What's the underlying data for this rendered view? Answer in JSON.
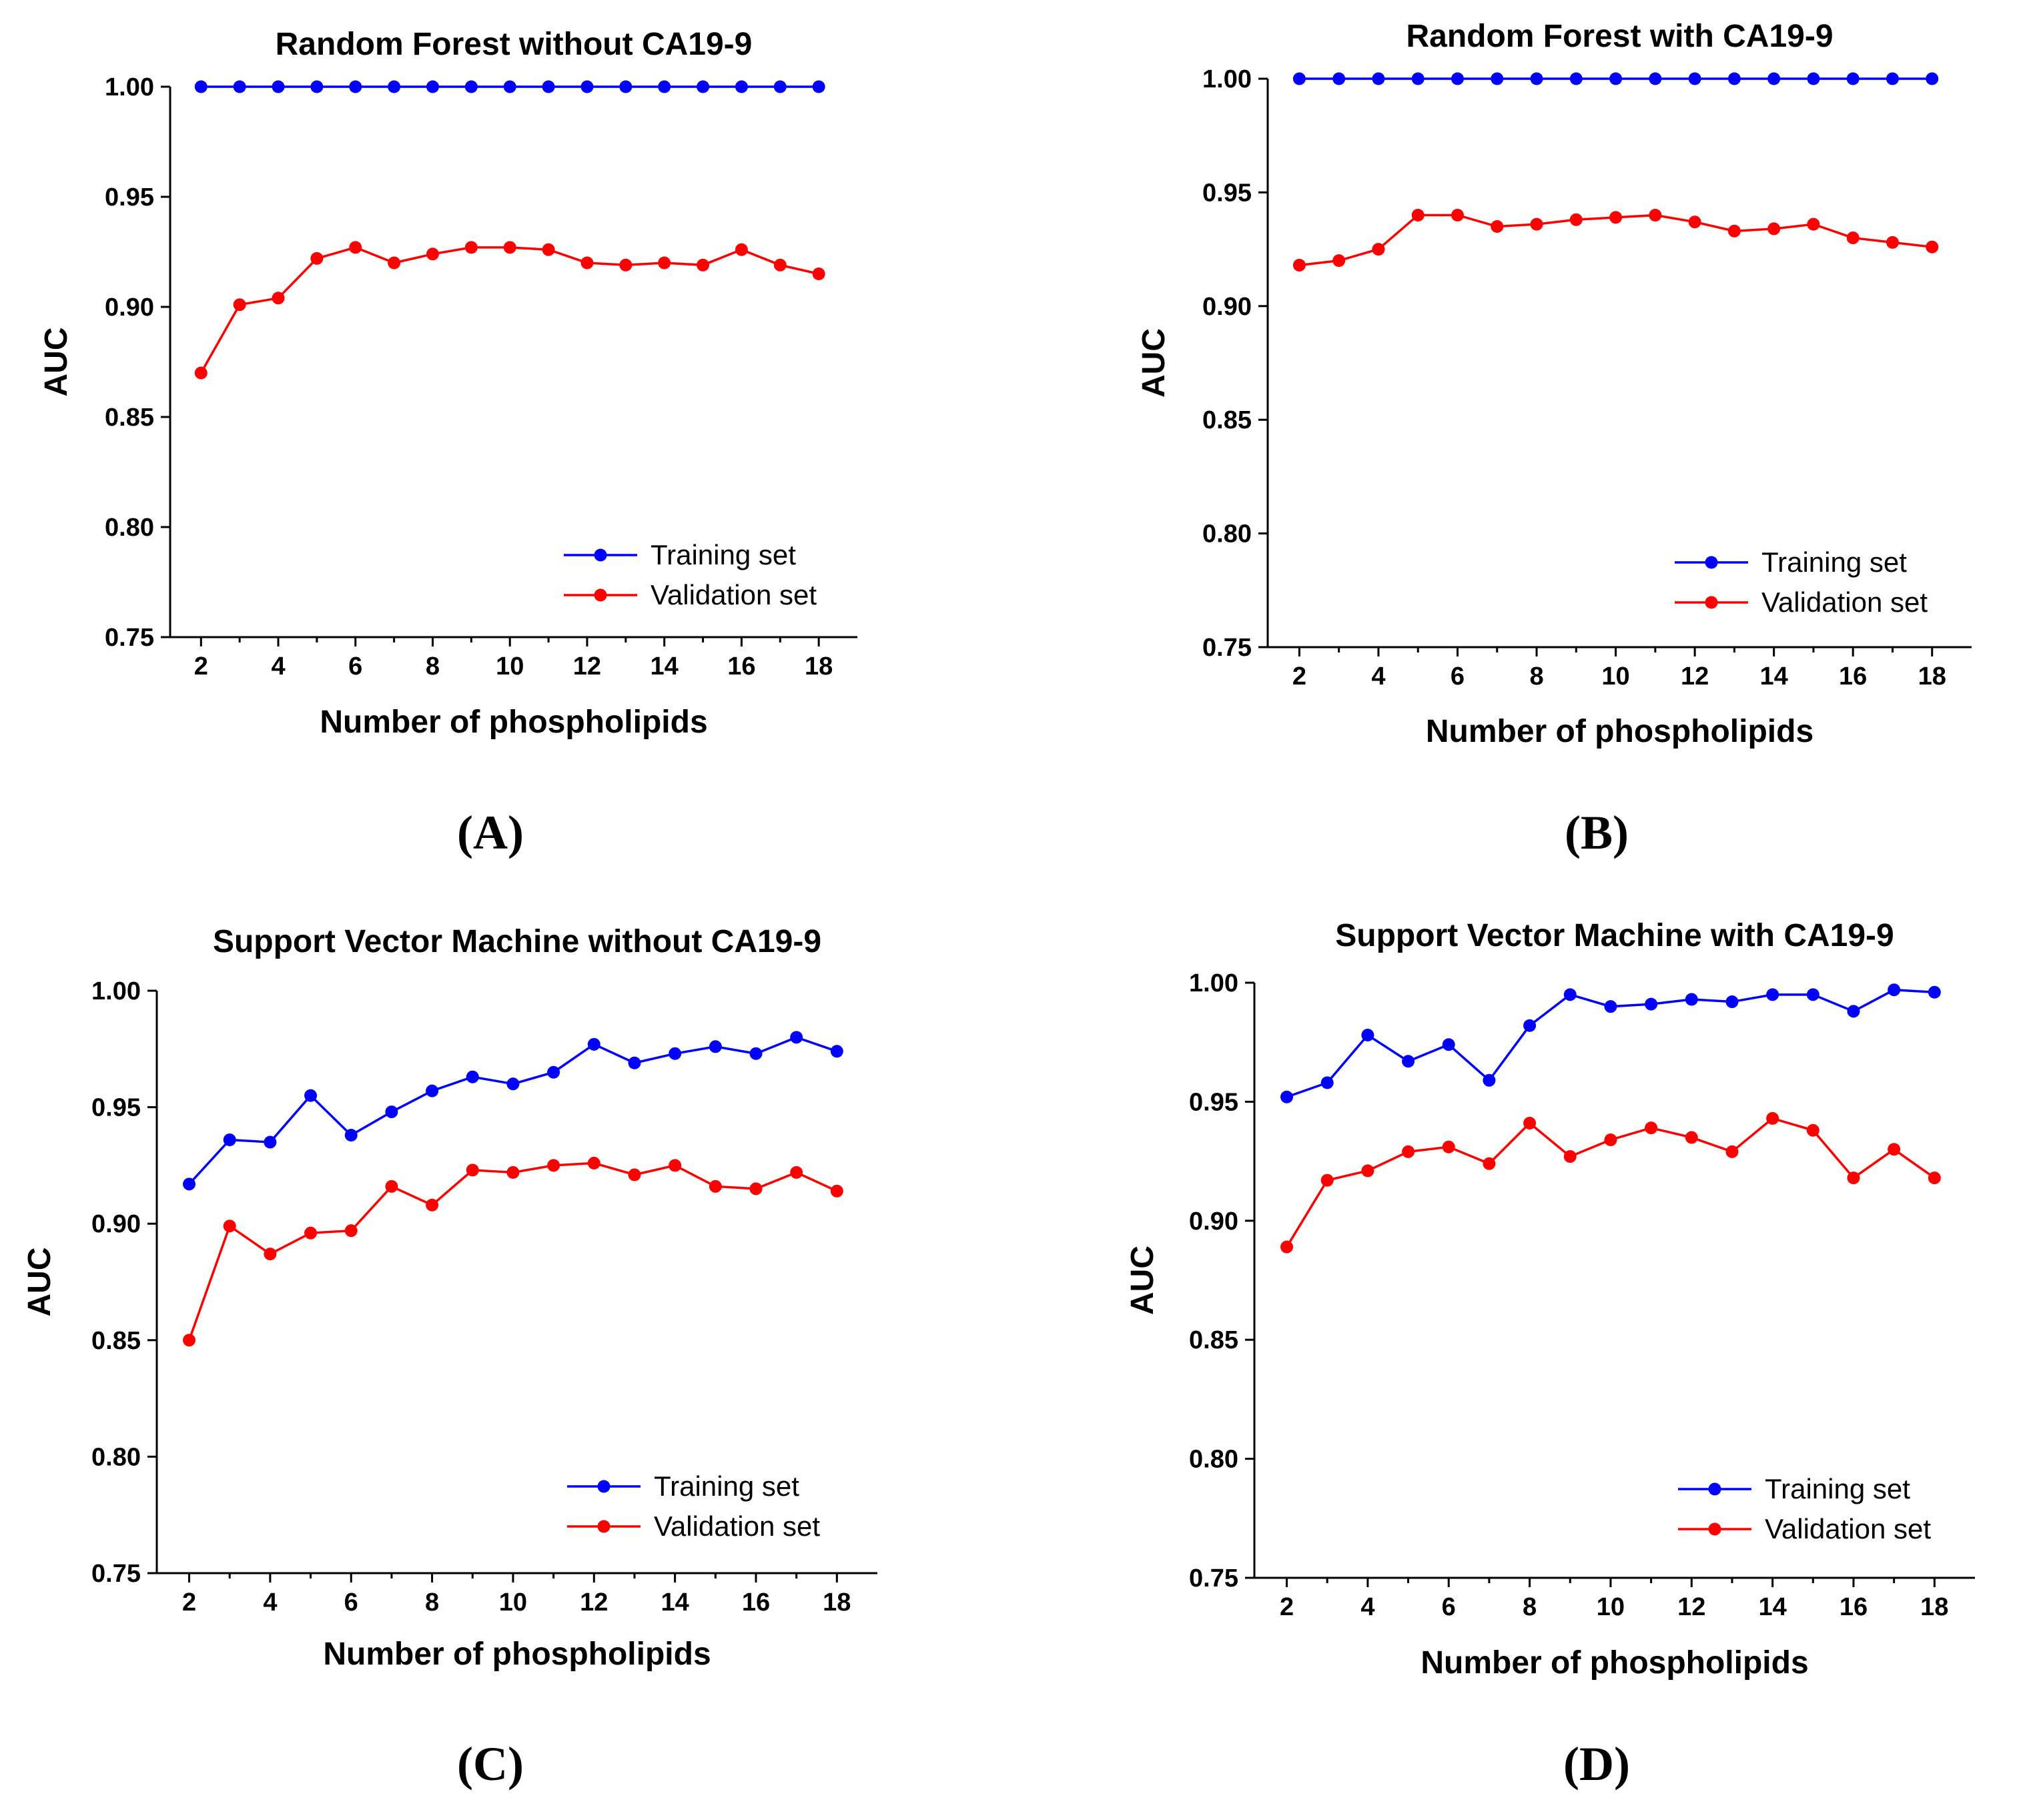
{
  "figure": {
    "panels": [
      "(A)",
      "(B)",
      "(C)",
      "(D)"
    ]
  },
  "colors": {
    "training": "#0000ff",
    "validation": "#ff0000",
    "axis": "#000000"
  },
  "chart_data": [
    {
      "type": "line",
      "title": "Random Forest without CA19-9",
      "xlabel": "Number of phospholipids",
      "ylabel": "AUC",
      "xlim": [
        1.2,
        19
      ],
      "ylim": [
        0.75,
        1.0
      ],
      "xticks": [
        2,
        4,
        6,
        8,
        10,
        12,
        14,
        16,
        18
      ],
      "yticks": [
        "0.75",
        "0.80",
        "0.85",
        "0.90",
        "0.95",
        "1.00"
      ],
      "legend_position": "bottom-right",
      "x": [
        2,
        3,
        4,
        5,
        6,
        7,
        8,
        9,
        10,
        11,
        12,
        13,
        14,
        15,
        16,
        17,
        18
      ],
      "series": [
        {
          "name": "Training set",
          "color": "#0000ff",
          "values": [
            1.0,
            1.0,
            1.0,
            1.0,
            1.0,
            1.0,
            1.0,
            1.0,
            1.0,
            1.0,
            1.0,
            1.0,
            1.0,
            1.0,
            1.0,
            1.0,
            1.0
          ]
        },
        {
          "name": "Validation set",
          "color": "#ff0000",
          "values": [
            0.87,
            0.901,
            0.904,
            0.922,
            0.927,
            0.92,
            0.924,
            0.927,
            0.927,
            0.926,
            0.92,
            0.919,
            0.92,
            0.919,
            0.926,
            0.919,
            0.915
          ]
        }
      ]
    },
    {
      "type": "line",
      "title": "Random Forest with CA19-9",
      "xlabel": "Number of phospholipids",
      "ylabel": "AUC",
      "xlim": [
        1.2,
        19
      ],
      "ylim": [
        0.75,
        1.0
      ],
      "xticks": [
        2,
        4,
        6,
        8,
        10,
        12,
        14,
        16,
        18
      ],
      "yticks": [
        "0.75",
        "0.80",
        "0.85",
        "0.90",
        "0.95",
        "1.00"
      ],
      "legend_position": "bottom-right",
      "x": [
        2,
        3,
        4,
        5,
        6,
        7,
        8,
        9,
        10,
        11,
        12,
        13,
        14,
        15,
        16,
        17,
        18
      ],
      "series": [
        {
          "name": "Training set",
          "color": "#0000ff",
          "values": [
            1.0,
            1.0,
            1.0,
            1.0,
            1.0,
            1.0,
            1.0,
            1.0,
            1.0,
            1.0,
            1.0,
            1.0,
            1.0,
            1.0,
            1.0,
            1.0,
            1.0
          ]
        },
        {
          "name": "Validation set",
          "color": "#ff0000",
          "values": [
            0.918,
            0.92,
            0.925,
            0.94,
            0.94,
            0.935,
            0.936,
            0.938,
            0.939,
            0.94,
            0.937,
            0.933,
            0.934,
            0.936,
            0.93,
            0.928,
            0.926
          ]
        }
      ]
    },
    {
      "type": "line",
      "title": "Support Vector Machine without CA19-9",
      "xlabel": "Number of phospholipids",
      "ylabel": "AUC",
      "xlim": [
        1.2,
        19
      ],
      "ylim": [
        0.75,
        1.0
      ],
      "xticks": [
        2,
        4,
        6,
        8,
        10,
        12,
        14,
        16,
        18
      ],
      "yticks": [
        "0.75",
        "0.80",
        "0.85",
        "0.90",
        "0.95",
        "1.00"
      ],
      "legend_position": "bottom-right",
      "x": [
        2,
        3,
        4,
        5,
        6,
        7,
        8,
        9,
        10,
        11,
        12,
        13,
        14,
        15,
        16,
        17,
        18
      ],
      "series": [
        {
          "name": "Training set",
          "color": "#0000ff",
          "values": [
            0.917,
            0.936,
            0.935,
            0.955,
            0.938,
            0.948,
            0.957,
            0.963,
            0.96,
            0.965,
            0.977,
            0.969,
            0.973,
            0.976,
            0.973,
            0.98,
            0.974
          ]
        },
        {
          "name": "Validation set",
          "color": "#ff0000",
          "values": [
            0.85,
            0.899,
            0.887,
            0.896,
            0.897,
            0.916,
            0.908,
            0.923,
            0.922,
            0.925,
            0.926,
            0.921,
            0.925,
            0.916,
            0.915,
            0.922,
            0.914
          ]
        }
      ]
    },
    {
      "type": "line",
      "title": "Support Vector Machine with CA19-9",
      "xlabel": "Number of phospholipids",
      "ylabel": "AUC",
      "xlim": [
        1.2,
        19
      ],
      "ylim": [
        0.75,
        1.0
      ],
      "xticks": [
        2,
        4,
        6,
        8,
        10,
        12,
        14,
        16,
        18
      ],
      "yticks": [
        "0.75",
        "0.80",
        "0.85",
        "0.90",
        "0.95",
        "1.00"
      ],
      "legend_position": "bottom-right",
      "x": [
        2,
        3,
        4,
        5,
        6,
        7,
        8,
        9,
        10,
        11,
        12,
        13,
        14,
        15,
        16,
        17,
        18
      ],
      "series": [
        {
          "name": "Training set",
          "color": "#0000ff",
          "values": [
            0.952,
            0.958,
            0.978,
            0.967,
            0.974,
            0.959,
            0.982,
            0.995,
            0.99,
            0.991,
            0.993,
            0.992,
            0.995,
            0.995,
            0.988,
            0.997,
            0.996
          ]
        },
        {
          "name": "Validation set",
          "color": "#ff0000",
          "values": [
            0.889,
            0.917,
            0.921,
            0.929,
            0.931,
            0.924,
            0.941,
            0.927,
            0.934,
            0.939,
            0.935,
            0.929,
            0.943,
            0.938,
            0.918,
            0.93,
            0.918
          ]
        }
      ]
    }
  ]
}
